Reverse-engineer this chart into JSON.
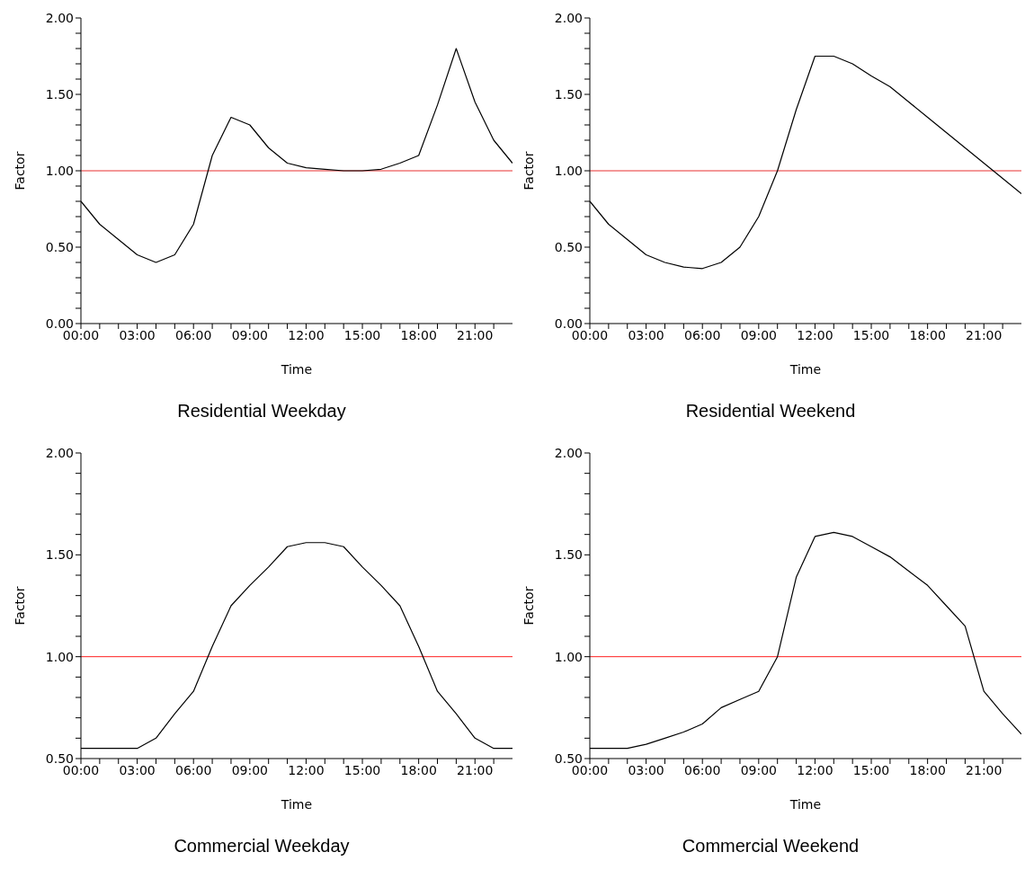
{
  "chart_data": [
    {
      "type": "line",
      "title": "Residential Weekday",
      "xlabel": "Time",
      "ylabel": "Factor",
      "grid": false,
      "marker": "none",
      "line_style": "solid",
      "x": [
        0,
        1,
        2,
        3,
        4,
        5,
        6,
        7,
        8,
        9,
        10,
        11,
        12,
        13,
        14,
        15,
        16,
        17,
        18,
        19,
        20,
        21,
        22,
        23
      ],
      "series": [
        {
          "color": "#000000",
          "values": [
            0.8,
            0.65,
            0.55,
            0.45,
            0.4,
            0.45,
            0.65,
            1.1,
            1.35,
            1.3,
            1.15,
            1.05,
            1.02,
            1.01,
            1.0,
            1.0,
            1.01,
            1.05,
            1.1,
            1.43,
            1.8,
            1.45,
            1.2,
            1.05
          ]
        }
      ],
      "xlim": [
        0,
        23
      ],
      "xticks": [
        {
          "value": 0,
          "label": "00:00"
        },
        {
          "value": 1,
          "label": null
        },
        {
          "value": 2,
          "label": null
        },
        {
          "value": 3,
          "label": "03:00"
        },
        {
          "value": 4,
          "label": null
        },
        {
          "value": 5,
          "label": null
        },
        {
          "value": 6,
          "label": "06:00"
        },
        {
          "value": 7,
          "label": null
        },
        {
          "value": 8,
          "label": null
        },
        {
          "value": 9,
          "label": "09:00"
        },
        {
          "value": 10,
          "label": null
        },
        {
          "value": 11,
          "label": null
        },
        {
          "value": 12,
          "label": "12:00"
        },
        {
          "value": 13,
          "label": null
        },
        {
          "value": 14,
          "label": null
        },
        {
          "value": 15,
          "label": "15:00"
        },
        {
          "value": 16,
          "label": null
        },
        {
          "value": 17,
          "label": null
        },
        {
          "value": 18,
          "label": "18:00"
        },
        {
          "value": 19,
          "label": null
        },
        {
          "value": 20,
          "label": null
        },
        {
          "value": 21,
          "label": "21:00"
        },
        {
          "value": 22,
          "label": null
        }
      ],
      "ylim": [
        0,
        2
      ],
      "yticks": [
        {
          "value": 0,
          "label": "0.00"
        },
        {
          "value": 0.1,
          "label": null
        },
        {
          "value": 0.2,
          "label": null
        },
        {
          "value": 0.3,
          "label": null
        },
        {
          "value": 0.4,
          "label": null
        },
        {
          "value": 0.5,
          "label": "0.50"
        },
        {
          "value": 0.6,
          "label": null
        },
        {
          "value": 0.7,
          "label": null
        },
        {
          "value": 0.8,
          "label": null
        },
        {
          "value": 0.9,
          "label": null
        },
        {
          "value": 1,
          "label": "1.00"
        },
        {
          "value": 1.1,
          "label": null
        },
        {
          "value": 1.2,
          "label": null
        },
        {
          "value": 1.3,
          "label": null
        },
        {
          "value": 1.4,
          "label": null
        },
        {
          "value": 1.5,
          "label": "1.50"
        },
        {
          "value": 1.6,
          "label": null
        },
        {
          "value": 1.7,
          "label": null
        },
        {
          "value": 1.8,
          "label": null
        },
        {
          "value": 1.9,
          "label": null
        },
        {
          "value": 2,
          "label": "2.00"
        }
      ],
      "ref_lines": [
        {
          "axis": "y",
          "value": 1,
          "color": "#e83030"
        }
      ]
    },
    {
      "type": "line",
      "title": "Residential Weekend",
      "xlabel": "Time",
      "ylabel": "Factor",
      "grid": false,
      "marker": "none",
      "line_style": "solid",
      "x": [
        0,
        1,
        2,
        3,
        4,
        5,
        6,
        7,
        8,
        9,
        10,
        11,
        12,
        13,
        14,
        15,
        16,
        17,
        18,
        19,
        20,
        21,
        22,
        23
      ],
      "series": [
        {
          "color": "#000000",
          "values": [
            0.8,
            0.65,
            0.55,
            0.45,
            0.4,
            0.37,
            0.36,
            0.4,
            0.5,
            0.7,
            1.0,
            1.4,
            1.75,
            1.75,
            1.7,
            1.62,
            1.55,
            1.45,
            1.35,
            1.25,
            1.15,
            1.05,
            0.95,
            0.85
          ]
        }
      ],
      "xlim": [
        0,
        23
      ],
      "xticks": [
        {
          "value": 0,
          "label": "00:00"
        },
        {
          "value": 1,
          "label": null
        },
        {
          "value": 2,
          "label": null
        },
        {
          "value": 3,
          "label": "03:00"
        },
        {
          "value": 4,
          "label": null
        },
        {
          "value": 5,
          "label": null
        },
        {
          "value": 6,
          "label": "06:00"
        },
        {
          "value": 7,
          "label": null
        },
        {
          "value": 8,
          "label": null
        },
        {
          "value": 9,
          "label": "09:00"
        },
        {
          "value": 10,
          "label": null
        },
        {
          "value": 11,
          "label": null
        },
        {
          "value": 12,
          "label": "12:00"
        },
        {
          "value": 13,
          "label": null
        },
        {
          "value": 14,
          "label": null
        },
        {
          "value": 15,
          "label": "15:00"
        },
        {
          "value": 16,
          "label": null
        },
        {
          "value": 17,
          "label": null
        },
        {
          "value": 18,
          "label": "18:00"
        },
        {
          "value": 19,
          "label": null
        },
        {
          "value": 20,
          "label": null
        },
        {
          "value": 21,
          "label": "21:00"
        },
        {
          "value": 22,
          "label": null
        }
      ],
      "ylim": [
        0,
        2
      ],
      "yticks": [
        {
          "value": 0,
          "label": "0.00"
        },
        {
          "value": 0.1,
          "label": null
        },
        {
          "value": 0.2,
          "label": null
        },
        {
          "value": 0.3,
          "label": null
        },
        {
          "value": 0.4,
          "label": null
        },
        {
          "value": 0.5,
          "label": "0.50"
        },
        {
          "value": 0.6,
          "label": null
        },
        {
          "value": 0.7,
          "label": null
        },
        {
          "value": 0.8,
          "label": null
        },
        {
          "value": 0.9,
          "label": null
        },
        {
          "value": 1,
          "label": "1.00"
        },
        {
          "value": 1.1,
          "label": null
        },
        {
          "value": 1.2,
          "label": null
        },
        {
          "value": 1.3,
          "label": null
        },
        {
          "value": 1.4,
          "label": null
        },
        {
          "value": 1.5,
          "label": "1.50"
        },
        {
          "value": 1.6,
          "label": null
        },
        {
          "value": 1.7,
          "label": null
        },
        {
          "value": 1.8,
          "label": null
        },
        {
          "value": 1.9,
          "label": null
        },
        {
          "value": 2,
          "label": "2.00"
        }
      ],
      "ref_lines": [
        {
          "axis": "y",
          "value": 1,
          "color": "#e83030"
        }
      ]
    },
    {
      "type": "line",
      "title": "Commercial Weekday",
      "xlabel": "Time",
      "ylabel": "Factor",
      "grid": false,
      "marker": "none",
      "line_style": "solid",
      "x": [
        0,
        1,
        2,
        3,
        4,
        5,
        6,
        7,
        8,
        9,
        10,
        11,
        12,
        13,
        14,
        15,
        16,
        17,
        18,
        19,
        20,
        21,
        22,
        23
      ],
      "series": [
        {
          "color": "#000000",
          "values": [
            0.55,
            0.55,
            0.55,
            0.55,
            0.6,
            0.72,
            0.83,
            1.05,
            1.25,
            1.35,
            1.44,
            1.54,
            1.56,
            1.56,
            1.54,
            1.44,
            1.35,
            1.25,
            1.05,
            0.83,
            0.72,
            0.6,
            0.55,
            0.55
          ]
        }
      ],
      "xlim": [
        0,
        23
      ],
      "xticks": [
        {
          "value": 0,
          "label": "00:00"
        },
        {
          "value": 1,
          "label": null
        },
        {
          "value": 2,
          "label": null
        },
        {
          "value": 3,
          "label": "03:00"
        },
        {
          "value": 4,
          "label": null
        },
        {
          "value": 5,
          "label": null
        },
        {
          "value": 6,
          "label": "06:00"
        },
        {
          "value": 7,
          "label": null
        },
        {
          "value": 8,
          "label": null
        },
        {
          "value": 9,
          "label": "09:00"
        },
        {
          "value": 10,
          "label": null
        },
        {
          "value": 11,
          "label": null
        },
        {
          "value": 12,
          "label": "12:00"
        },
        {
          "value": 13,
          "label": null
        },
        {
          "value": 14,
          "label": null
        },
        {
          "value": 15,
          "label": "15:00"
        },
        {
          "value": 16,
          "label": null
        },
        {
          "value": 17,
          "label": null
        },
        {
          "value": 18,
          "label": "18:00"
        },
        {
          "value": 19,
          "label": null
        },
        {
          "value": 20,
          "label": null
        },
        {
          "value": 21,
          "label": "21:00"
        },
        {
          "value": 22,
          "label": null
        }
      ],
      "ylim": [
        0.5,
        2
      ],
      "yticks": [
        {
          "value": 0.5,
          "label": "0.50"
        },
        {
          "value": 0.6,
          "label": null
        },
        {
          "value": 0.7,
          "label": null
        },
        {
          "value": 0.8,
          "label": null
        },
        {
          "value": 0.9,
          "label": null
        },
        {
          "value": 1,
          "label": "1.00"
        },
        {
          "value": 1.1,
          "label": null
        },
        {
          "value": 1.2,
          "label": null
        },
        {
          "value": 1.3,
          "label": null
        },
        {
          "value": 1.4,
          "label": null
        },
        {
          "value": 1.5,
          "label": "1.50"
        },
        {
          "value": 1.6,
          "label": null
        },
        {
          "value": 1.7,
          "label": null
        },
        {
          "value": 1.8,
          "label": null
        },
        {
          "value": 1.9,
          "label": null
        },
        {
          "value": 2,
          "label": "2.00"
        }
      ],
      "ref_lines": [
        {
          "axis": "y",
          "value": 1,
          "color": "#ff2020"
        }
      ]
    },
    {
      "type": "line",
      "title": "Commercial Weekend",
      "xlabel": "Time",
      "ylabel": "Factor",
      "grid": false,
      "marker": "none",
      "line_style": "solid",
      "x": [
        0,
        1,
        2,
        3,
        4,
        5,
        6,
        7,
        8,
        9,
        10,
        11,
        12,
        13,
        14,
        15,
        16,
        17,
        18,
        19,
        20,
        21,
        22,
        23
      ],
      "series": [
        {
          "color": "#000000",
          "values": [
            0.55,
            0.55,
            0.55,
            0.57,
            0.6,
            0.63,
            0.67,
            0.75,
            0.79,
            0.83,
            1.0,
            1.39,
            1.59,
            1.61,
            1.59,
            1.54,
            1.49,
            1.42,
            1.35,
            1.25,
            1.15,
            0.83,
            0.72,
            0.62
          ]
        }
      ],
      "xlim": [
        0,
        23
      ],
      "xticks": [
        {
          "value": 0,
          "label": "00:00"
        },
        {
          "value": 1,
          "label": null
        },
        {
          "value": 2,
          "label": null
        },
        {
          "value": 3,
          "label": "03:00"
        },
        {
          "value": 4,
          "label": null
        },
        {
          "value": 5,
          "label": null
        },
        {
          "value": 6,
          "label": "06:00"
        },
        {
          "value": 7,
          "label": null
        },
        {
          "value": 8,
          "label": null
        },
        {
          "value": 9,
          "label": "09:00"
        },
        {
          "value": 10,
          "label": null
        },
        {
          "value": 11,
          "label": null
        },
        {
          "value": 12,
          "label": "12:00"
        },
        {
          "value": 13,
          "label": null
        },
        {
          "value": 14,
          "label": null
        },
        {
          "value": 15,
          "label": "15:00"
        },
        {
          "value": 16,
          "label": null
        },
        {
          "value": 17,
          "label": null
        },
        {
          "value": 18,
          "label": "18:00"
        },
        {
          "value": 19,
          "label": null
        },
        {
          "value": 20,
          "label": null
        },
        {
          "value": 21,
          "label": "21:00"
        },
        {
          "value": 22,
          "label": null
        }
      ],
      "ylim": [
        0.5,
        2
      ],
      "yticks": [
        {
          "value": 0.5,
          "label": "0.50"
        },
        {
          "value": 0.6,
          "label": null
        },
        {
          "value": 0.7,
          "label": null
        },
        {
          "value": 0.8,
          "label": null
        },
        {
          "value": 0.9,
          "label": null
        },
        {
          "value": 1,
          "label": "1.00"
        },
        {
          "value": 1.1,
          "label": null
        },
        {
          "value": 1.2,
          "label": null
        },
        {
          "value": 1.3,
          "label": null
        },
        {
          "value": 1.4,
          "label": null
        },
        {
          "value": 1.5,
          "label": "1.50"
        },
        {
          "value": 1.6,
          "label": null
        },
        {
          "value": 1.7,
          "label": null
        },
        {
          "value": 1.8,
          "label": null
        },
        {
          "value": 1.9,
          "label": null
        },
        {
          "value": 2,
          "label": "2.00"
        }
      ],
      "ref_lines": [
        {
          "axis": "y",
          "value": 1,
          "color": "#ff2020"
        }
      ]
    }
  ]
}
